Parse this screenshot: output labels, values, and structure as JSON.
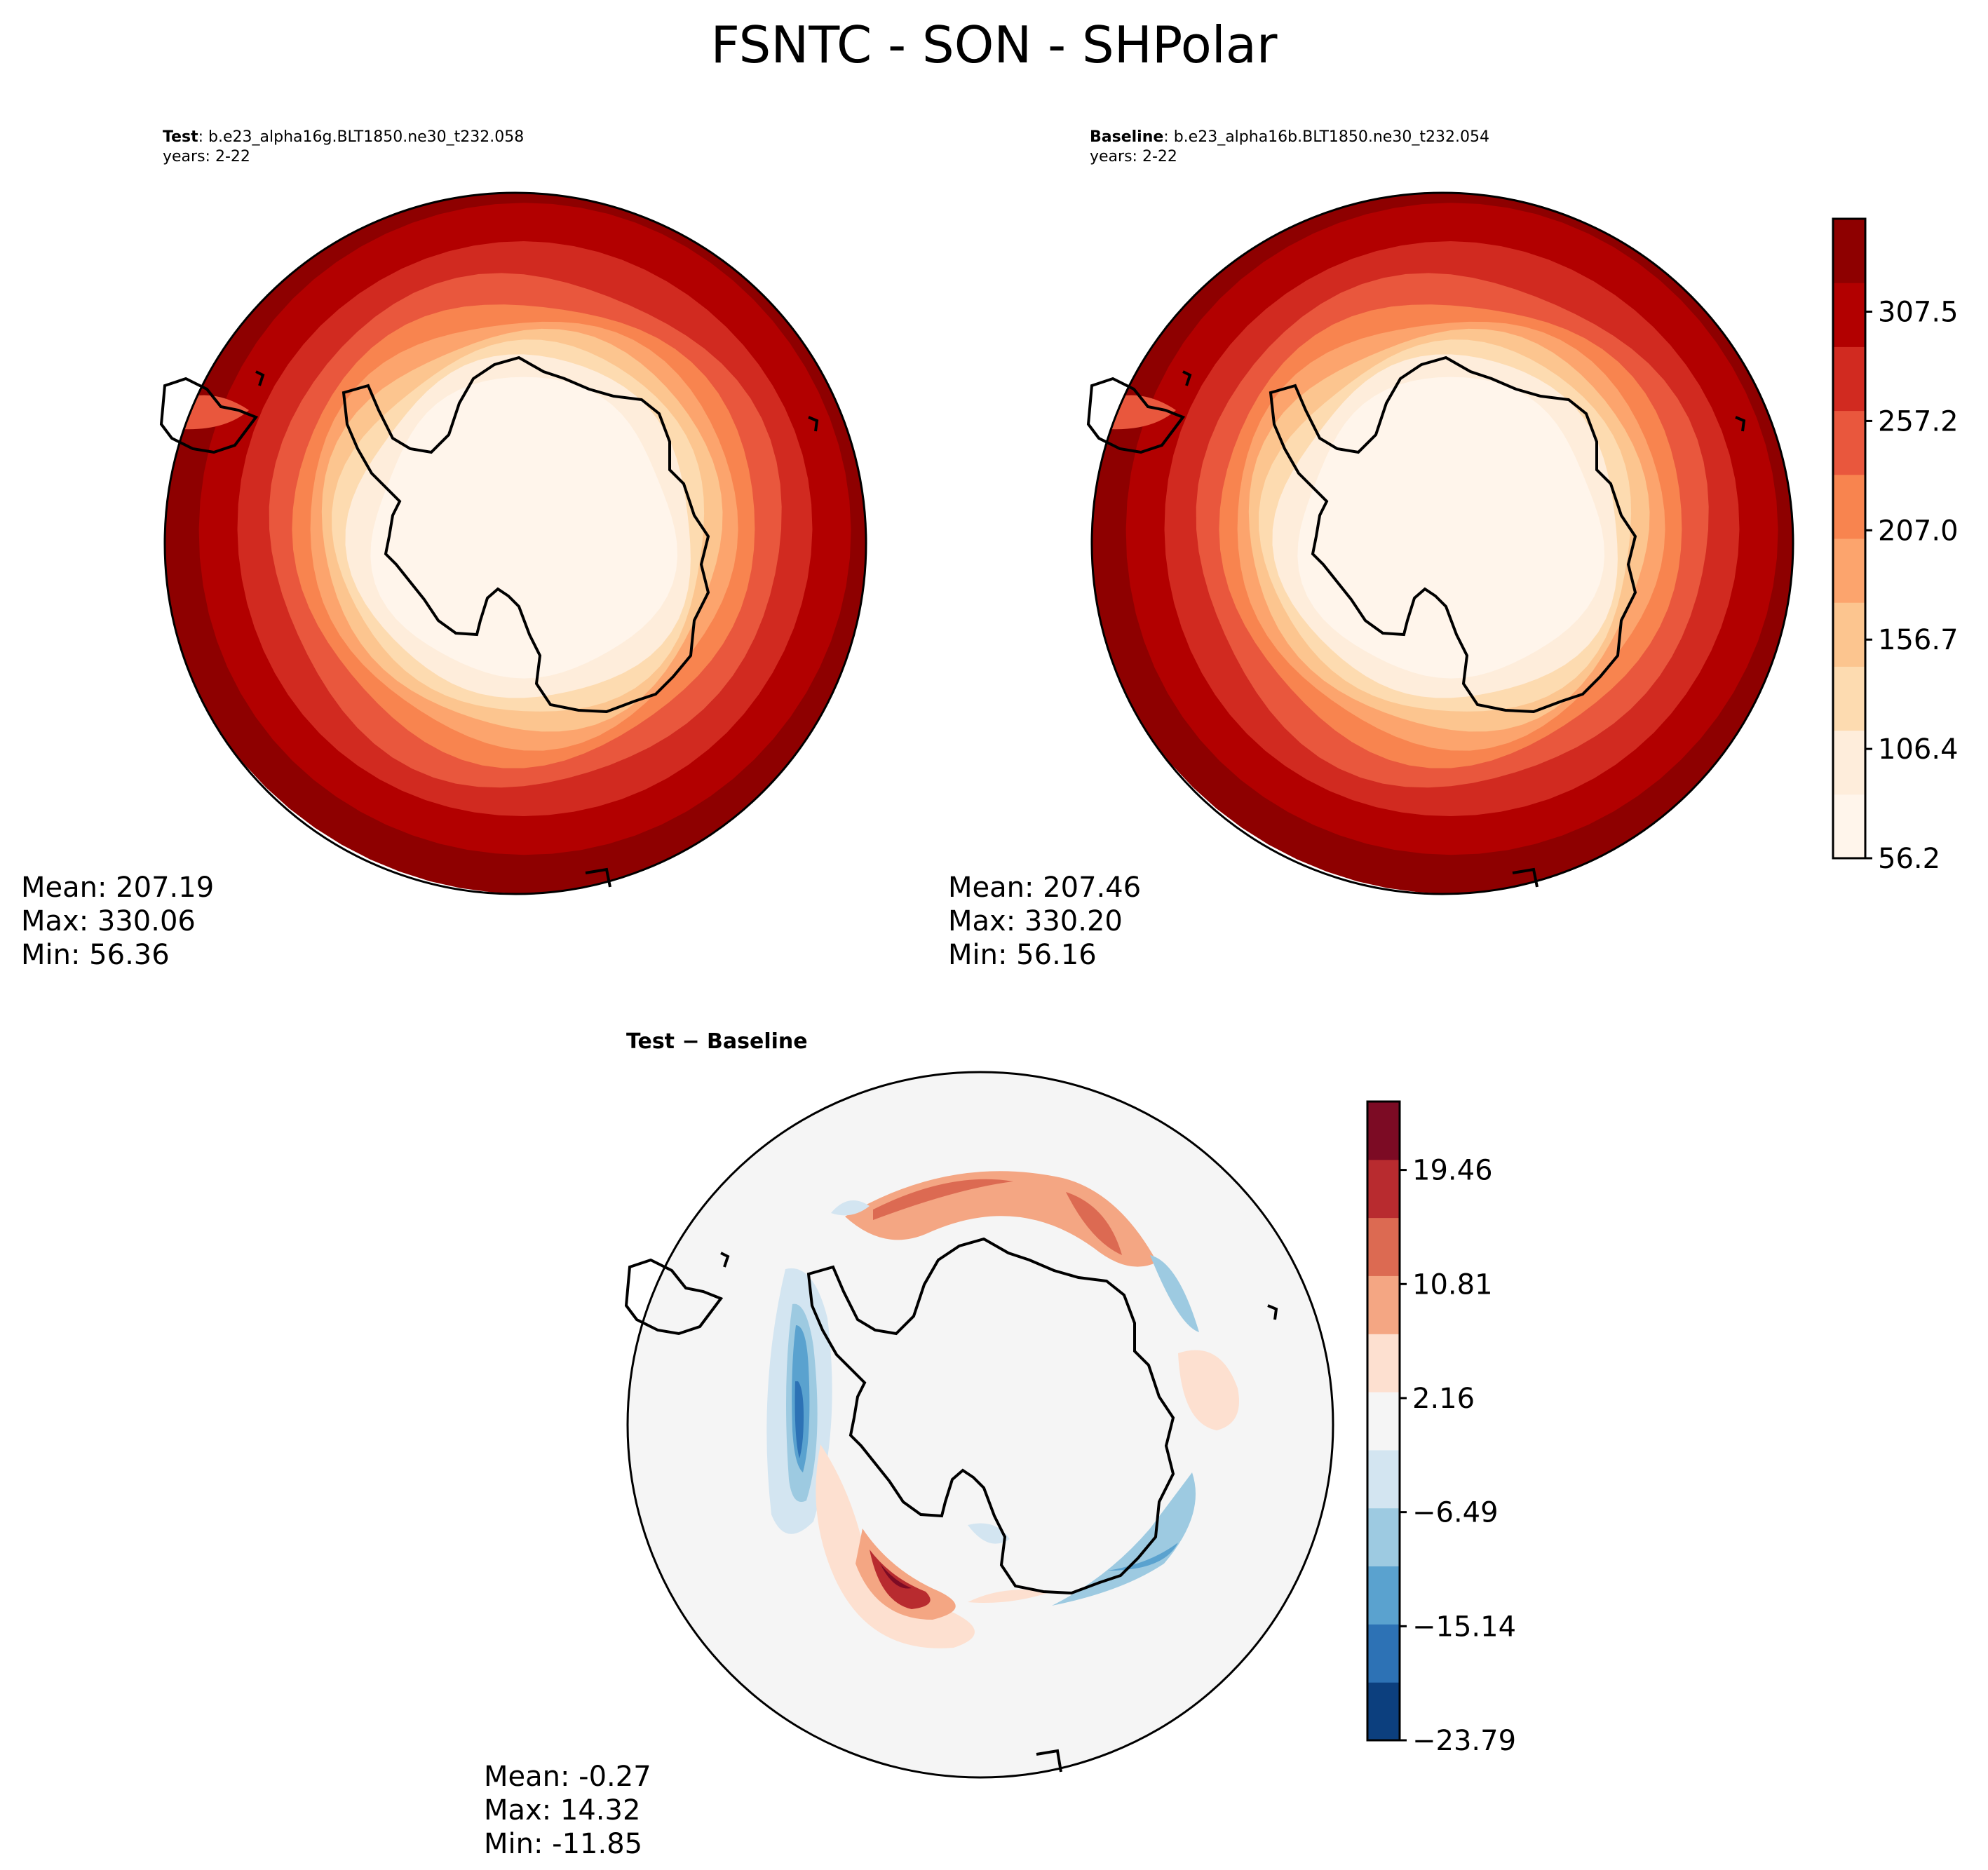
{
  "figure": {
    "title": "FSNTC - SON - SHPolar"
  },
  "colors": {
    "field_levels": [
      "#fff5eb",
      "#feeddb",
      "#fddbb0",
      "#fcc58f",
      "#fca46d",
      "#f8844f",
      "#e9573d",
      "#d12a20",
      "#b20000",
      "#8e0000"
    ],
    "diff_levels": [
      "#0c3f7e",
      "#2d72b5",
      "#5aa2cf",
      "#9dcae1",
      "#d3e5f1",
      "#f5f5f5",
      "#fde0d0",
      "#f4a683",
      "#dc6a52",
      "#b82b2f",
      "#7c0b24"
    ],
    "coastline": "#000000"
  },
  "panels": {
    "test": {
      "label_bold": "Test",
      "label_rest": ": b.e23_alpha16g.BLT1850.ne30_t232.058",
      "years": "years: 2-22",
      "mean": "Mean: 207.19",
      "max": "Max: 330.06",
      "min": "Min: 56.36"
    },
    "baseline": {
      "label_bold": "Baseline",
      "label_rest": ": b.e23_alpha16b.BLT1850.ne30_t232.054",
      "years": "years: 2-22",
      "mean": "Mean: 207.46",
      "max": "Max: 330.20",
      "min": "Min: 56.16"
    },
    "diff": {
      "title": "Test − Baseline",
      "mean": "Mean: -0.27",
      "max": "Max: 14.32",
      "min": "Min: -11.85"
    }
  },
  "colorbars": {
    "field": {
      "ticks": [
        "56.2",
        "106.4",
        "156.7",
        "207.0",
        "257.2",
        "307.5"
      ]
    },
    "diff": {
      "ticks": [
        "−23.79",
        "−15.14",
        "−6.49",
        "2.16",
        "10.81",
        "19.46"
      ]
    }
  }
}
